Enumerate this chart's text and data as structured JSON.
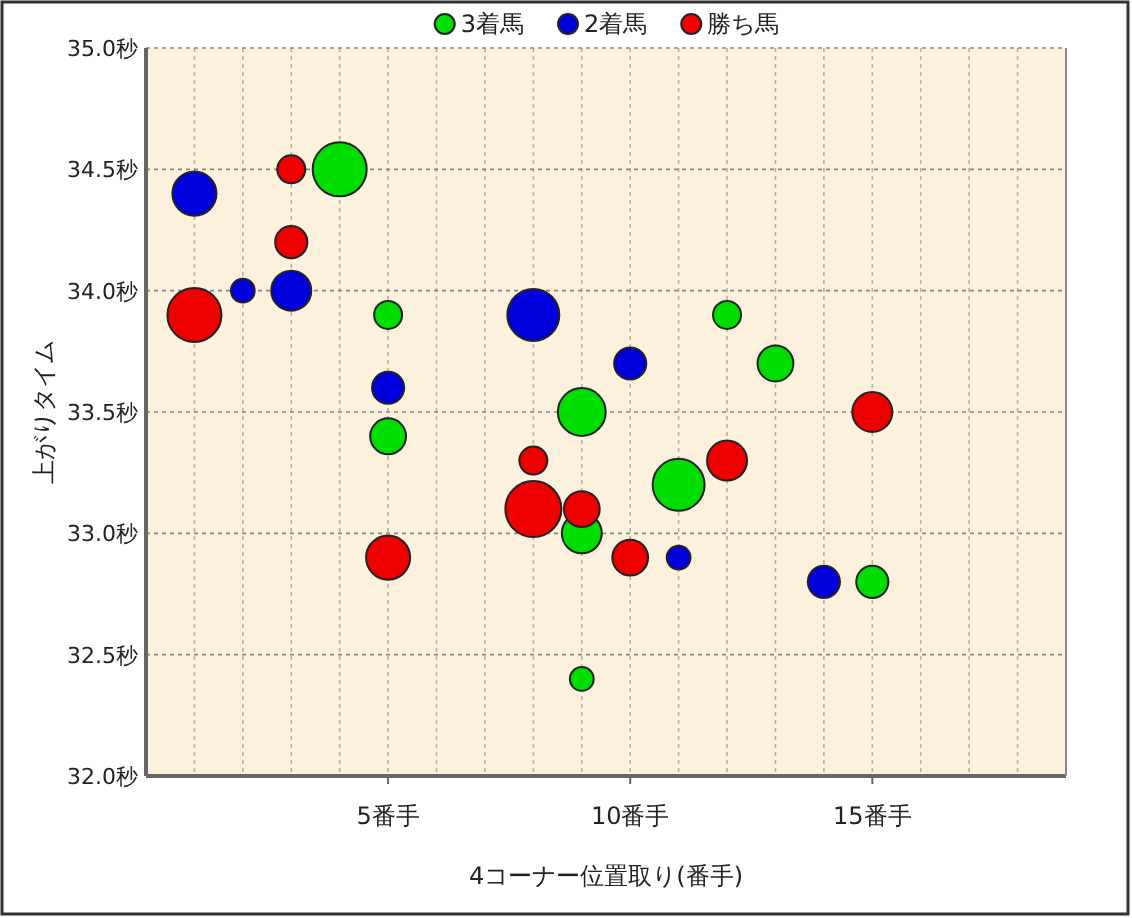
{
  "chart_data": {
    "type": "bubble",
    "xlabel": "4コーナー位置取り(番手)",
    "ylabel": "上がりタイム",
    "xlim": [
      0,
      19
    ],
    "ylim": [
      32.0,
      35.0
    ],
    "xticks": [
      {
        "value": 1,
        "label": null
      },
      {
        "value": 2,
        "label": null
      },
      {
        "value": 3,
        "label": null
      },
      {
        "value": 4,
        "label": null
      },
      {
        "value": 5,
        "label": "5番手"
      },
      {
        "value": 6,
        "label": null
      },
      {
        "value": 7,
        "label": null
      },
      {
        "value": 8,
        "label": null
      },
      {
        "value": 9,
        "label": null
      },
      {
        "value": 10,
        "label": "10番手"
      },
      {
        "value": 11,
        "label": null
      },
      {
        "value": 12,
        "label": null
      },
      {
        "value": 13,
        "label": null
      },
      {
        "value": 14,
        "label": null
      },
      {
        "value": 15,
        "label": "15番手"
      },
      {
        "value": 16,
        "label": null
      },
      {
        "value": 17,
        "label": null
      },
      {
        "value": 18,
        "label": null
      }
    ],
    "yticks": [
      {
        "value": 32.0,
        "label": "32.0秒"
      },
      {
        "value": 32.5,
        "label": "32.5秒"
      },
      {
        "value": 33.0,
        "label": "33.0秒"
      },
      {
        "value": 33.5,
        "label": "33.5秒"
      },
      {
        "value": 34.0,
        "label": "34.0秒"
      },
      {
        "value": 34.5,
        "label": "34.5秒"
      },
      {
        "value": 35.0,
        "label": "35.0秒"
      }
    ],
    "grid": true,
    "legend": "top",
    "series": [
      {
        "name": "3着馬",
        "color": "#00dd00",
        "x": [
          4,
          5,
          5,
          9,
          11,
          9,
          12,
          13,
          15,
          9
        ],
        "values": [
          34.5,
          33.9,
          33.4,
          33.5,
          33.2,
          33.0,
          33.9,
          33.7,
          32.8,
          32.4
        ],
        "sizes": [
          0.93,
          0.25,
          0.41,
          0.73,
          0.86,
          0.51,
          0.25,
          0.41,
          0.33,
          0.18
        ]
      },
      {
        "name": "2着馬",
        "color": "#0000dd",
        "x": [
          1,
          2,
          3,
          5,
          8,
          10,
          11,
          14
        ],
        "values": [
          34.4,
          34.0,
          34.0,
          33.6,
          33.9,
          33.7,
          32.9,
          32.8
        ],
        "sizes": [
          0.62,
          0.18,
          0.51,
          0.33,
          0.86,
          0.33,
          0.18,
          0.33
        ]
      },
      {
        "name": "勝ち馬",
        "color": "#ee0000",
        "x": [
          1,
          3,
          3,
          5,
          8,
          8,
          9,
          10,
          12,
          15
        ],
        "values": [
          33.9,
          34.5,
          34.2,
          32.9,
          33.3,
          33.1,
          33.1,
          32.9,
          33.3,
          33.5
        ],
        "sizes": [
          0.93,
          0.25,
          0.33,
          0.62,
          0.25,
          1,
          0.41,
          0.41,
          0.51,
          0.51
        ]
      }
    ]
  }
}
